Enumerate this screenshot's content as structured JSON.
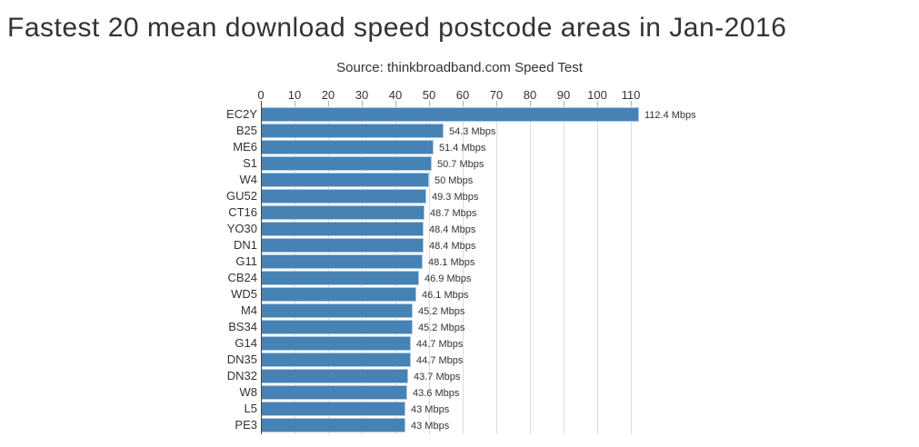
{
  "chart_data": {
    "type": "bar",
    "orientation": "horizontal",
    "title": "Fastest 20 mean download speed postcode areas in Jan-2016",
    "subtitle": "Source: thinkbroadband.com Speed Test",
    "unit": "Mbps",
    "categories": [
      "EC2Y",
      "B25",
      "ME6",
      "S1",
      "W4",
      "GU52",
      "CT16",
      "YO30",
      "DN1",
      "G11",
      "CB24",
      "WD5",
      "M4",
      "BS34",
      "G14",
      "DN35",
      "DN32",
      "W8",
      "L5",
      "PE3"
    ],
    "values": [
      112.4,
      54.3,
      51.4,
      50.7,
      50,
      49.3,
      48.7,
      48.4,
      48.4,
      48.1,
      46.9,
      46.1,
      45.2,
      45.2,
      44.7,
      44.7,
      43.7,
      43.6,
      43,
      43
    ],
    "value_labels": [
      "112.4 Mbps",
      "54.3 Mbps",
      "51.4 Mbps",
      "50.7 Mbps",
      "50 Mbps",
      "49.3 Mbps",
      "48.7 Mbps",
      "48.4 Mbps",
      "48.4 Mbps",
      "48.1 Mbps",
      "46.9 Mbps",
      "46.1 Mbps",
      "45.2 Mbps",
      "45.2 Mbps",
      "44.7 Mbps",
      "44.7 Mbps",
      "43.7 Mbps",
      "43.6 Mbps",
      "43 Mbps",
      "43 Mbps"
    ],
    "x_ticks": [
      0,
      10,
      20,
      30,
      40,
      50,
      60,
      70,
      80,
      90,
      100,
      110
    ],
    "x_tick_labels": [
      "0",
      "10",
      "20",
      "30",
      "40",
      "50",
      "60",
      "70",
      "80",
      "90",
      "100",
      "110"
    ],
    "xlim": [
      0,
      110
    ],
    "grid": "vertical",
    "legend": "none",
    "colors": {
      "bar_fill": "#4682b4",
      "bar_border": "#abc9e2",
      "gridline": "#dcdcdc",
      "axis_line": "#444444",
      "tick_mark": "#b0b0b0",
      "text": "#333333"
    }
  }
}
